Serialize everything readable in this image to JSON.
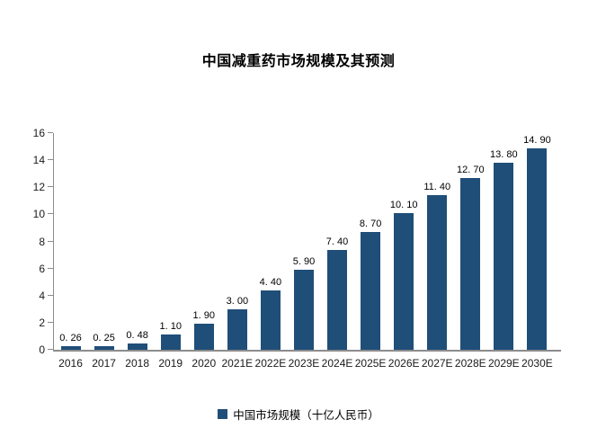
{
  "chart": {
    "title": "中国减重药市场规模及其预测",
    "legend_label": "中国市场规模（十亿人民币）"
  },
  "chart_data": {
    "type": "bar",
    "title": "中国减重药市场规模及其预测",
    "categories": [
      "2016",
      "2017",
      "2018",
      "2019",
      "2020",
      "2021E",
      "2022E",
      "2023E",
      "2024E",
      "2025E",
      "2026E",
      "2027E",
      "2028E",
      "2029E",
      "2030E"
    ],
    "values": [
      0.26,
      0.25,
      0.48,
      1.1,
      1.9,
      3.0,
      4.4,
      5.9,
      7.4,
      8.7,
      10.1,
      11.4,
      12.7,
      13.8,
      14.9
    ],
    "value_labels": [
      "0. 26",
      "0. 25",
      "0. 48",
      "1. 10",
      "1. 90",
      "3. 00",
      "4. 40",
      "5. 90",
      "7. 40",
      "8. 70",
      "10. 10",
      "11. 40",
      "12. 70",
      "13. 80",
      "14. 90"
    ],
    "series": [
      {
        "name": "中国市场规模（十亿人民币）",
        "values": [
          0.26,
          0.25,
          0.48,
          1.1,
          1.9,
          3.0,
          4.4,
          5.9,
          7.4,
          8.7,
          10.1,
          11.4,
          12.7,
          13.8,
          14.9
        ]
      }
    ],
    "legend_entries": [
      "中国市场规模（十亿人民币）"
    ],
    "legend_position": "bottom-center",
    "xlabel": "",
    "ylabel": "",
    "ylim": [
      0,
      16
    ],
    "yticks": [
      0,
      2,
      4,
      6,
      8,
      10,
      12,
      14,
      16
    ],
    "grid": false,
    "bar_color": "#1f4e79",
    "axis_color": "#8c8c8c",
    "text_color": "#000000",
    "background_color": "#ffffff"
  }
}
